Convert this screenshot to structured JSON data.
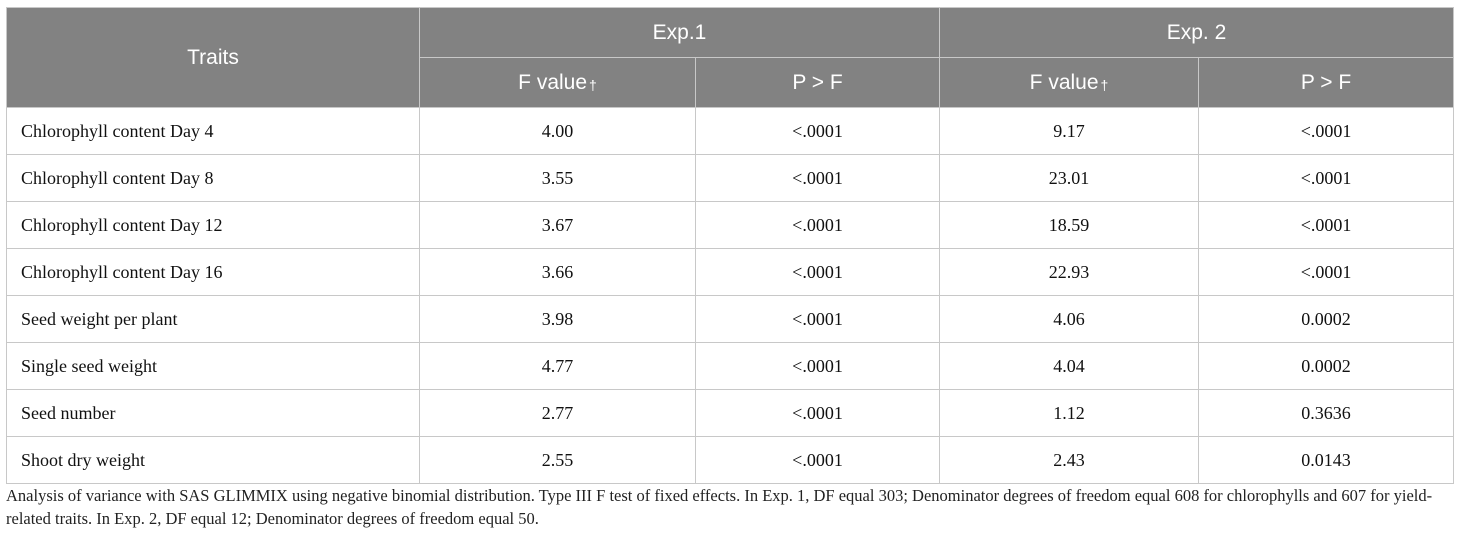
{
  "table": {
    "header_traits": "Traits",
    "groups": [
      "Exp.1",
      "Exp. 2"
    ],
    "subheaders": [
      {
        "label": "F value",
        "mark": "†"
      },
      {
        "label": "P > F",
        "mark": ""
      },
      {
        "label": "F value",
        "mark": "†"
      },
      {
        "label": "P > F",
        "mark": ""
      }
    ],
    "rows": [
      {
        "trait": "Chlorophyll content Day 4",
        "exp1_f": "4.00",
        "exp1_p": "<.0001",
        "exp2_f": "9.17",
        "exp2_p": "<.0001"
      },
      {
        "trait": "Chlorophyll content Day 8",
        "exp1_f": "3.55",
        "exp1_p": "<.0001",
        "exp2_f": "23.01",
        "exp2_p": "<.0001"
      },
      {
        "trait": "Chlorophyll content Day 12",
        "exp1_f": "3.67",
        "exp1_p": "<.0001",
        "exp2_f": "18.59",
        "exp2_p": "<.0001"
      },
      {
        "trait": "Chlorophyll content Day 16",
        "exp1_f": "3.66",
        "exp1_p": "<.0001",
        "exp2_f": "22.93",
        "exp2_p": "<.0001"
      },
      {
        "trait": "Seed weight per plant",
        "exp1_f": "3.98",
        "exp1_p": "<.0001",
        "exp2_f": "4.06",
        "exp2_p": "0.0002"
      },
      {
        "trait": "Single seed weight",
        "exp1_f": "4.77",
        "exp1_p": "<.0001",
        "exp2_f": "4.04",
        "exp2_p": "0.0002"
      },
      {
        "trait": "Seed number",
        "exp1_f": "2.77",
        "exp1_p": "<.0001",
        "exp2_f": "1.12",
        "exp2_p": "0.3636"
      },
      {
        "trait": "Shoot dry weight",
        "exp1_f": "2.55",
        "exp1_p": "<.0001",
        "exp2_f": "2.43",
        "exp2_p": "0.0143"
      }
    ]
  },
  "footnote": "Analysis of variance with SAS GLIMMIX using negative binomial distribution. Type III F test of fixed effects. In Exp. 1, DF equal 303; Denominator degrees of freedom equal 608 for chlorophylls and 607 for yield-related traits. In Exp. 2, DF equal 12; Denominator degrees of freedom equal 50.",
  "colors": {
    "header_bg": "#828282",
    "header_text": "#ffffff",
    "border": "#c8c8c8"
  }
}
